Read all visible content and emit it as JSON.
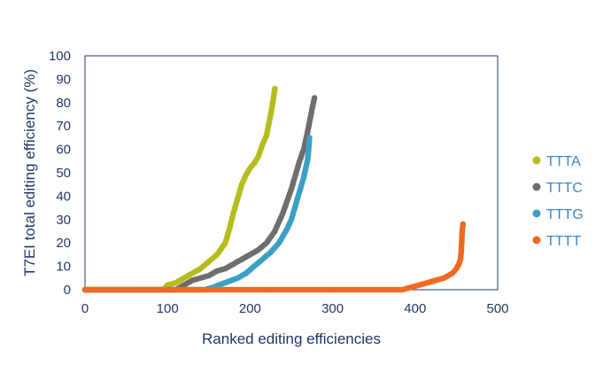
{
  "chart_data": {
    "type": "scatter",
    "title": "",
    "xlabel": "Ranked editing efficiencies",
    "ylabel": "T7EI total editing efficiency (%)",
    "xlim": [
      0,
      500
    ],
    "ylim": [
      0,
      100
    ],
    "xticks": [
      0,
      100,
      200,
      300,
      400,
      500
    ],
    "yticks": [
      0,
      10,
      20,
      30,
      40,
      50,
      60,
      70,
      80,
      90,
      100
    ],
    "grid": false,
    "legend_position": "right",
    "series": [
      {
        "name": "TTTA",
        "color": "#b5bd1e",
        "x": [
          0,
          95,
          100,
          110,
          120,
          130,
          140,
          150,
          160,
          170,
          175,
          180,
          185,
          190,
          195,
          200,
          205,
          210,
          215,
          220,
          225,
          228,
          230
        ],
        "y": [
          0,
          0,
          2,
          3,
          5,
          7,
          9,
          12,
          15,
          20,
          26,
          33,
          39,
          45,
          49,
          52,
          54,
          57,
          62,
          66,
          75,
          81,
          86
        ]
      },
      {
        "name": "TTTC",
        "color": "#6e6e6e",
        "x": [
          0,
          110,
          120,
          130,
          140,
          150,
          160,
          170,
          180,
          190,
          200,
          210,
          220,
          230,
          240,
          245,
          250,
          255,
          260,
          265,
          270,
          275,
          278
        ],
        "y": [
          0,
          0,
          2,
          4,
          5,
          6,
          8,
          9,
          11,
          13,
          15,
          17,
          20,
          25,
          33,
          38,
          43,
          49,
          55,
          60,
          68,
          77,
          82
        ]
      },
      {
        "name": "TTTG",
        "color": "#3aa0c6",
        "x": [
          0,
          145,
          155,
          170,
          185,
          195,
          205,
          215,
          225,
          235,
          245,
          250,
          255,
          260,
          265,
          270,
          272
        ],
        "y": [
          0,
          0,
          1,
          3,
          5,
          7,
          10,
          13,
          16,
          20,
          26,
          30,
          36,
          42,
          48,
          56,
          65
        ]
      },
      {
        "name": "TTTT",
        "color": "#f06a20",
        "x": [
          0,
          385,
          395,
          405,
          415,
          425,
          435,
          440,
          445,
          450,
          453,
          455,
          456,
          457,
          458
        ],
        "y": [
          0,
          0,
          1,
          2,
          3,
          4,
          5,
          6,
          7,
          9,
          11,
          13,
          17,
          25,
          28
        ]
      }
    ]
  }
}
